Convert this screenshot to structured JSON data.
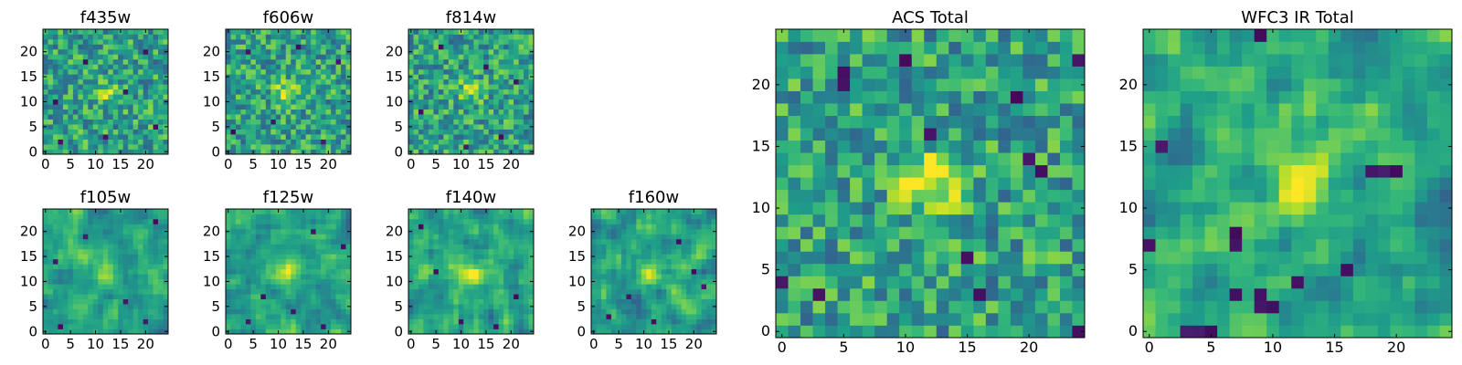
{
  "chart_data": [
    {
      "type": "heatmap",
      "title": "f435w",
      "grid_size": 25,
      "xlim": [
        0,
        24
      ],
      "ylim": [
        0,
        24
      ],
      "xticks": [
        0,
        5,
        10,
        15,
        20
      ],
      "yticks": [
        0,
        5,
        10,
        15,
        20
      ],
      "colormap": "viridis",
      "seed": 11,
      "peak": 0.25,
      "smooth": 0,
      "dark_spots": [
        [
          3,
          2
        ],
        [
          22,
          5
        ],
        [
          8,
          18
        ],
        [
          16,
          12
        ],
        [
          2,
          10
        ],
        [
          20,
          20
        ],
        [
          12,
          3
        ]
      ]
    },
    {
      "type": "heatmap",
      "title": "f606w",
      "grid_size": 25,
      "xlim": [
        0,
        24
      ],
      "ylim": [
        0,
        24
      ],
      "xticks": [
        0,
        5,
        10,
        15,
        20
      ],
      "yticks": [
        0,
        5,
        10,
        15,
        20
      ],
      "colormap": "viridis",
      "seed": 23,
      "peak": 0.35,
      "smooth": 0,
      "dark_spots": [
        [
          19,
          2
        ],
        [
          4,
          20
        ],
        [
          22,
          18
        ],
        [
          9,
          6
        ],
        [
          14,
          21
        ],
        [
          1,
          4
        ]
      ]
    },
    {
      "type": "heatmap",
      "title": "f814w",
      "grid_size": 25,
      "xlim": [
        0,
        24
      ],
      "ylim": [
        0,
        24
      ],
      "xticks": [
        0,
        5,
        10,
        15,
        20
      ],
      "yticks": [
        0,
        5,
        10,
        15,
        20
      ],
      "colormap": "viridis",
      "seed": 37,
      "peak": 0.25,
      "smooth": 0,
      "dark_spots": [
        [
          2,
          8
        ],
        [
          18,
          3
        ],
        [
          21,
          14
        ],
        [
          6,
          21
        ],
        [
          11,
          1
        ],
        [
          15,
          17
        ]
      ]
    },
    {
      "type": "heatmap",
      "title": "f105w",
      "grid_size": 25,
      "xlim": [
        0,
        24
      ],
      "ylim": [
        0,
        24
      ],
      "xticks": [
        0,
        5,
        10,
        15,
        20
      ],
      "yticks": [
        0,
        5,
        10,
        15,
        20
      ],
      "colormap": "viridis",
      "seed": 41,
      "peak": 0.3,
      "smooth": 1,
      "dark_spots": [
        [
          3,
          1
        ],
        [
          20,
          2
        ],
        [
          8,
          19
        ],
        [
          22,
          22
        ],
        [
          16,
          6
        ],
        [
          2,
          14
        ]
      ]
    },
    {
      "type": "heatmap",
      "title": "f125w",
      "grid_size": 25,
      "xlim": [
        0,
        24
      ],
      "ylim": [
        0,
        24
      ],
      "xticks": [
        0,
        5,
        10,
        15,
        20
      ],
      "yticks": [
        0,
        5,
        10,
        15,
        20
      ],
      "colormap": "viridis",
      "seed": 53,
      "peak": 0.3,
      "smooth": 1,
      "dark_spots": [
        [
          7,
          7
        ],
        [
          19,
          1
        ],
        [
          13,
          4
        ],
        [
          23,
          17
        ],
        [
          4,
          2
        ],
        [
          17,
          20
        ]
      ]
    },
    {
      "type": "heatmap",
      "title": "f140w",
      "grid_size": 25,
      "xlim": [
        0,
        24
      ],
      "ylim": [
        0,
        24
      ],
      "xticks": [
        0,
        5,
        10,
        15,
        20
      ],
      "yticks": [
        0,
        5,
        10,
        15,
        20
      ],
      "colormap": "viridis",
      "seed": 67,
      "peak": 0.3,
      "smooth": 1,
      "dark_spots": [
        [
          10,
          2
        ],
        [
          21,
          7
        ],
        [
          5,
          12
        ],
        [
          17,
          1
        ],
        [
          2,
          21
        ]
      ]
    },
    {
      "type": "heatmap",
      "title": "f160w",
      "grid_size": 25,
      "xlim": [
        0,
        24
      ],
      "ylim": [
        0,
        24
      ],
      "xticks": [
        0,
        5,
        10,
        15,
        20
      ],
      "yticks": [
        0,
        5,
        10,
        15,
        20
      ],
      "colormap": "viridis",
      "seed": 79,
      "peak": 0.35,
      "smooth": 1,
      "dark_spots": [
        [
          20,
          12
        ],
        [
          22,
          9
        ],
        [
          7,
          7
        ],
        [
          3,
          3
        ],
        [
          17,
          18
        ],
        [
          12,
          2
        ]
      ]
    },
    {
      "type": "heatmap",
      "title": "ACS Total",
      "grid_size": 25,
      "xlim": [
        0,
        24
      ],
      "ylim": [
        0,
        24
      ],
      "xticks": [
        0,
        5,
        10,
        15,
        20
      ],
      "yticks": [
        0,
        5,
        10,
        15,
        20
      ],
      "colormap": "viridis",
      "seed": 97,
      "peak": 0.45,
      "smooth": 0,
      "dark_spots": [
        [
          5,
          21
        ],
        [
          10,
          22
        ],
        [
          19,
          19
        ],
        [
          21,
          13
        ],
        [
          20,
          14
        ],
        [
          16,
          3
        ],
        [
          24,
          0
        ],
        [
          3,
          3
        ],
        [
          0,
          4
        ],
        [
          15,
          6
        ],
        [
          12,
          16
        ],
        [
          24,
          22
        ],
        [
          5,
          20
        ]
      ]
    },
    {
      "type": "heatmap",
      "title": "WFC3 IR Total",
      "grid_size": 25,
      "xlim": [
        0,
        24
      ],
      "ylim": [
        0,
        24
      ],
      "xticks": [
        0,
        5,
        10,
        15,
        20
      ],
      "yticks": [
        0,
        5,
        10,
        15,
        20
      ],
      "colormap": "viridis",
      "seed": 113,
      "peak": 0.5,
      "smooth": 1,
      "dark_spots": [
        [
          18,
          13
        ],
        [
          19,
          13
        ],
        [
          20,
          13
        ],
        [
          7,
          8
        ],
        [
          7,
          7
        ],
        [
          4,
          0
        ],
        [
          3,
          0
        ],
        [
          5,
          0
        ],
        [
          7,
          3
        ],
        [
          9,
          2
        ],
        [
          10,
          2
        ],
        [
          9,
          3
        ],
        [
          0,
          7
        ],
        [
          1,
          15
        ],
        [
          12,
          4
        ],
        [
          16,
          5
        ],
        [
          9,
          24
        ]
      ]
    }
  ]
}
